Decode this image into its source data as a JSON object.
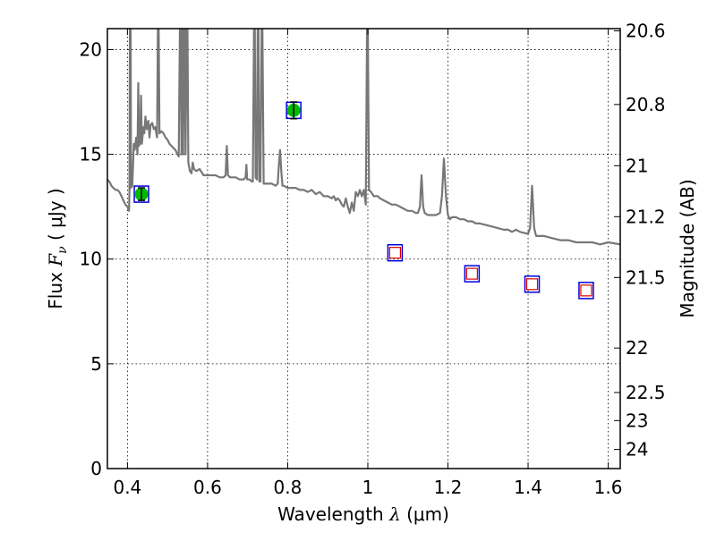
{
  "chart_data": {
    "type": "line",
    "xlabel": {
      "prefix": "Wavelength  ",
      "symbol": "λ",
      "unit": " (μm)"
    },
    "ylabel": {
      "prefix": "Flux  ",
      "symbol": "F",
      "subscript": "ν",
      "unit": "  ( μJy )"
    },
    "y2label": "Magnitude (AB)",
    "xlim": [
      0.35,
      1.63
    ],
    "ylim": [
      0,
      21
    ],
    "grid": true,
    "x_ticks": [
      0.4,
      0.6,
      0.8,
      1.0,
      1.2,
      1.4,
      1.6
    ],
    "x_tick_labels": [
      "0.4",
      "0.6",
      "0.8",
      "1",
      "1.2",
      "1.4",
      "1.6"
    ],
    "y_ticks": [
      0,
      5,
      10,
      15,
      20
    ],
    "y_tick_labels": [
      "0",
      "5",
      "10",
      "15",
      "20"
    ],
    "right_axis": {
      "type": "magnitude_ab",
      "ticks": [
        20.6,
        20.8,
        21,
        21.2,
        21.5,
        22,
        22.5,
        23,
        24
      ],
      "labels": [
        "20.6",
        "20.8",
        "21",
        "21.2",
        "21.5",
        "22",
        "22.5",
        "23",
        "24"
      ]
    },
    "series": [
      {
        "type": "line",
        "color": "#777777",
        "points": [
          [
            0.35,
            13.8
          ],
          [
            0.355,
            13.7
          ],
          [
            0.36,
            13.5
          ],
          [
            0.365,
            13.4
          ],
          [
            0.37,
            13.3
          ],
          [
            0.375,
            13.3
          ],
          [
            0.38,
            13.2
          ],
          [
            0.385,
            13.0
          ],
          [
            0.39,
            12.8
          ],
          [
            0.395,
            12.6
          ],
          [
            0.4,
            12.5
          ],
          [
            0.404,
            12.3
          ],
          [
            0.405,
            13.2
          ],
          [
            0.406,
            21.0
          ],
          [
            0.408,
            21.0
          ],
          [
            0.409,
            13.4
          ],
          [
            0.412,
            13.5
          ],
          [
            0.416,
            15.5
          ],
          [
            0.418,
            15.2
          ],
          [
            0.422,
            15.8
          ],
          [
            0.425,
            15.0
          ],
          [
            0.427,
            18.4
          ],
          [
            0.429,
            15.4
          ],
          [
            0.432,
            15.6
          ],
          [
            0.434,
            17.8
          ],
          [
            0.436,
            15.5
          ],
          [
            0.44,
            16.3
          ],
          [
            0.442,
            16.0
          ],
          [
            0.445,
            16.8
          ],
          [
            0.448,
            16.2
          ],
          [
            0.452,
            16.6
          ],
          [
            0.455,
            15.8
          ],
          [
            0.458,
            16.4
          ],
          [
            0.462,
            16.5
          ],
          [
            0.466,
            16.2
          ],
          [
            0.47,
            16.3
          ],
          [
            0.472,
            16.0
          ],
          [
            0.474,
            15.8
          ],
          [
            0.476,
            21.0
          ],
          [
            0.478,
            21.0
          ],
          [
            0.48,
            16.0
          ],
          [
            0.485,
            16.1
          ],
          [
            0.49,
            16.0
          ],
          [
            0.495,
            15.8
          ],
          [
            0.5,
            15.7
          ],
          [
            0.505,
            15.5
          ],
          [
            0.51,
            15.4
          ],
          [
            0.515,
            15.3
          ],
          [
            0.52,
            15.2
          ],
          [
            0.525,
            15.0
          ],
          [
            0.528,
            14.9
          ],
          [
            0.531,
            21.0
          ],
          [
            0.533,
            21.0
          ],
          [
            0.535,
            15.0
          ],
          [
            0.537,
            21.0
          ],
          [
            0.539,
            15.0
          ],
          [
            0.541,
            21.0
          ],
          [
            0.543,
            21.0
          ],
          [
            0.545,
            15.0
          ],
          [
            0.548,
            21.0
          ],
          [
            0.55,
            21.0
          ],
          [
            0.552,
            14.6
          ],
          [
            0.556,
            14.2
          ],
          [
            0.56,
            14.1
          ],
          [
            0.563,
            14.6
          ],
          [
            0.566,
            14.3
          ],
          [
            0.572,
            14.2
          ],
          [
            0.58,
            14.3
          ],
          [
            0.59,
            14.0
          ],
          [
            0.6,
            14.0
          ],
          [
            0.61,
            14.0
          ],
          [
            0.62,
            14.0
          ],
          [
            0.63,
            13.9
          ],
          [
            0.64,
            13.9
          ],
          [
            0.645,
            14.0
          ],
          [
            0.648,
            15.4
          ],
          [
            0.651,
            14.0
          ],
          [
            0.656,
            13.9
          ],
          [
            0.66,
            13.9
          ],
          [
            0.67,
            13.9
          ],
          [
            0.68,
            13.8
          ],
          [
            0.69,
            13.8
          ],
          [
            0.695,
            13.9
          ],
          [
            0.697,
            14.5
          ],
          [
            0.699,
            13.8
          ],
          [
            0.705,
            13.8
          ],
          [
            0.71,
            13.7
          ],
          [
            0.713,
            13.7
          ],
          [
            0.716,
            21.0
          ],
          [
            0.718,
            21.0
          ],
          [
            0.72,
            13.9
          ],
          [
            0.723,
            13.8
          ],
          [
            0.725,
            21.0
          ],
          [
            0.727,
            21.0
          ],
          [
            0.729,
            13.7
          ],
          [
            0.732,
            13.7
          ],
          [
            0.735,
            21.0
          ],
          [
            0.737,
            21.0
          ],
          [
            0.74,
            13.6
          ],
          [
            0.745,
            13.6
          ],
          [
            0.75,
            13.6
          ],
          [
            0.76,
            13.6
          ],
          [
            0.77,
            13.5
          ],
          [
            0.775,
            13.6
          ],
          [
            0.778,
            14.5
          ],
          [
            0.781,
            15.2
          ],
          [
            0.784,
            14.2
          ],
          [
            0.787,
            13.5
          ],
          [
            0.79,
            13.5
          ],
          [
            0.8,
            13.4
          ],
          [
            0.81,
            13.4
          ],
          [
            0.82,
            13.4
          ],
          [
            0.83,
            13.3
          ],
          [
            0.84,
            13.3
          ],
          [
            0.85,
            13.2
          ],
          [
            0.86,
            13.3
          ],
          [
            0.87,
            13.1
          ],
          [
            0.88,
            13.2
          ],
          [
            0.89,
            13.0
          ],
          [
            0.9,
            13.0
          ],
          [
            0.91,
            12.9
          ],
          [
            0.915,
            13.0
          ],
          [
            0.92,
            12.8
          ],
          [
            0.925,
            12.9
          ],
          [
            0.93,
            12.8
          ],
          [
            0.935,
            12.6
          ],
          [
            0.94,
            12.5
          ],
          [
            0.945,
            12.9
          ],
          [
            0.95,
            12.5
          ],
          [
            0.955,
            12.2
          ],
          [
            0.96,
            12.7
          ],
          [
            0.965,
            12.3
          ],
          [
            0.97,
            13.2
          ],
          [
            0.975,
            13.0
          ],
          [
            0.98,
            13.3
          ],
          [
            0.985,
            13.0
          ],
          [
            0.99,
            13.3
          ],
          [
            0.995,
            12.6
          ],
          [
            0.998,
            21.0
          ],
          [
            1.0,
            21.0
          ],
          [
            1.003,
            13.3
          ],
          [
            1.008,
            13.2
          ],
          [
            1.015,
            13.0
          ],
          [
            1.02,
            13.0
          ],
          [
            1.025,
            13.0
          ],
          [
            1.03,
            12.9
          ],
          [
            1.04,
            12.8
          ],
          [
            1.05,
            12.7
          ],
          [
            1.06,
            12.6
          ],
          [
            1.07,
            12.6
          ],
          [
            1.08,
            12.5
          ],
          [
            1.09,
            12.4
          ],
          [
            1.1,
            12.3
          ],
          [
            1.11,
            12.3
          ],
          [
            1.12,
            12.2
          ],
          [
            1.125,
            12.2
          ],
          [
            1.13,
            12.5
          ],
          [
            1.134,
            14.0
          ],
          [
            1.138,
            12.5
          ],
          [
            1.142,
            12.2
          ],
          [
            1.15,
            12.1
          ],
          [
            1.16,
            12.1
          ],
          [
            1.17,
            12.1
          ],
          [
            1.18,
            12.2
          ],
          [
            1.185,
            13.0
          ],
          [
            1.19,
            14.8
          ],
          [
            1.195,
            13.0
          ],
          [
            1.2,
            12.1
          ],
          [
            1.205,
            11.9
          ],
          [
            1.21,
            12.0
          ],
          [
            1.22,
            12.0
          ],
          [
            1.23,
            11.9
          ],
          [
            1.24,
            11.9
          ],
          [
            1.25,
            11.8
          ],
          [
            1.26,
            11.8
          ],
          [
            1.27,
            11.7
          ],
          [
            1.28,
            11.7
          ],
          [
            1.3,
            11.6
          ],
          [
            1.32,
            11.5
          ],
          [
            1.34,
            11.4
          ],
          [
            1.35,
            11.4
          ],
          [
            1.36,
            11.3
          ],
          [
            1.37,
            11.4
          ],
          [
            1.38,
            11.3
          ],
          [
            1.4,
            11.2
          ],
          [
            1.405,
            11.5
          ],
          [
            1.41,
            13.5
          ],
          [
            1.415,
            11.5
          ],
          [
            1.42,
            11.1
          ],
          [
            1.44,
            11.1
          ],
          [
            1.46,
            11.0
          ],
          [
            1.48,
            10.9
          ],
          [
            1.5,
            10.9
          ],
          [
            1.52,
            10.8
          ],
          [
            1.54,
            10.8
          ],
          [
            1.56,
            10.8
          ],
          [
            1.58,
            10.7
          ],
          [
            1.6,
            10.8
          ],
          [
            1.63,
            10.7
          ]
        ]
      },
      {
        "type": "points",
        "marker": "filled-circle-with-errorbar",
        "color": "#00bb00",
        "outline": "#0000dd",
        "points": [
          {
            "x": 0.435,
            "y": 13.1,
            "err": 0.3
          },
          {
            "x": 0.815,
            "y": 17.1,
            "err": 0.4
          }
        ]
      },
      {
        "type": "points",
        "marker": "open-square",
        "color": "#dd0000",
        "outline": "#0000dd",
        "points": [
          {
            "x": 1.068,
            "y": 10.3
          },
          {
            "x": 1.26,
            "y": 9.3
          },
          {
            "x": 1.41,
            "y": 8.8
          },
          {
            "x": 1.545,
            "y": 8.5
          }
        ]
      }
    ]
  }
}
